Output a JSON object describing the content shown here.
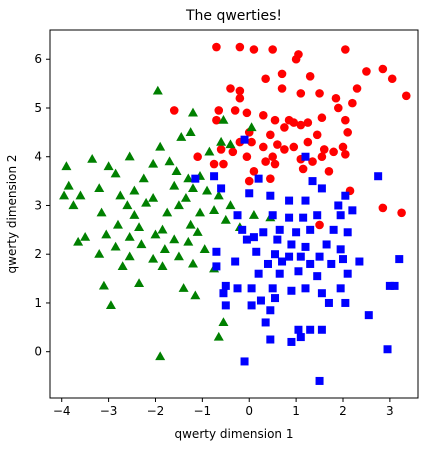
{
  "chart_data": {
    "type": "scatter",
    "title": "The qwerties!",
    "xlabel": "qwerty dimension 1",
    "ylabel": "qwerty dimension 2",
    "xlim": [
      -4.25,
      3.6
    ],
    "ylim": [
      -0.95,
      6.6
    ],
    "xticks": [
      -4,
      -3,
      -2,
      -1,
      0,
      1,
      2,
      3
    ],
    "yticks": [
      0,
      1,
      2,
      3,
      4,
      5,
      6
    ],
    "grid": false,
    "legend": "none",
    "series": [
      {
        "marker": "circle",
        "color": "#ff0000",
        "points": [
          [
            -0.7,
            6.25
          ],
          [
            -0.2,
            6.25
          ],
          [
            0.1,
            6.2
          ],
          [
            0.5,
            6.2
          ],
          [
            1.0,
            6.0
          ],
          [
            1.05,
            6.1
          ],
          [
            2.05,
            6.2
          ],
          [
            2.85,
            5.8
          ],
          [
            3.05,
            5.6
          ],
          [
            3.35,
            5.25
          ],
          [
            2.5,
            5.75
          ],
          [
            2.3,
            5.4
          ],
          [
            2.2,
            5.1
          ],
          [
            1.85,
            5.2
          ],
          [
            0.35,
            5.6
          ],
          [
            0.7,
            5.7
          ],
          [
            1.3,
            5.65
          ],
          [
            -0.4,
            5.4
          ],
          [
            -0.2,
            5.35
          ],
          [
            -0.2,
            5.2
          ],
          [
            0.7,
            5.4
          ],
          [
            1.1,
            5.3
          ],
          [
            1.5,
            5.3
          ],
          [
            1.9,
            5.0
          ],
          [
            -1.6,
            4.95
          ],
          [
            -0.65,
            4.95
          ],
          [
            -0.3,
            4.95
          ],
          [
            -0.05,
            4.9
          ],
          [
            0.3,
            4.85
          ],
          [
            0.85,
            4.75
          ],
          [
            1.25,
            4.7
          ],
          [
            1.55,
            4.8
          ],
          [
            2.05,
            4.75
          ],
          [
            -0.7,
            4.75
          ],
          [
            0.55,
            4.75
          ],
          [
            0.95,
            4.7
          ],
          [
            1.1,
            4.65
          ],
          [
            0.0,
            4.5
          ],
          [
            0.45,
            4.45
          ],
          [
            0.75,
            4.6
          ],
          [
            1.45,
            4.45
          ],
          [
            2.1,
            4.5
          ],
          [
            -0.2,
            4.3
          ],
          [
            0.05,
            4.3
          ],
          [
            0.3,
            4.2
          ],
          [
            0.6,
            4.25
          ],
          [
            0.95,
            4.2
          ],
          [
            1.25,
            4.3
          ],
          [
            1.6,
            4.15
          ],
          [
            2.0,
            4.2
          ],
          [
            -0.6,
            4.15
          ],
          [
            -0.35,
            4.1
          ],
          [
            -0.05,
            4.0
          ],
          [
            0.5,
            4.0
          ],
          [
            0.75,
            4.15
          ],
          [
            1.1,
            3.95
          ],
          [
            1.55,
            4.0
          ],
          [
            1.8,
            4.1
          ],
          [
            2.05,
            4.05
          ],
          [
            -1.1,
            4.0
          ],
          [
            -0.75,
            3.85
          ],
          [
            0.1,
            3.7
          ],
          [
            0.35,
            3.9
          ],
          [
            0.55,
            3.85
          ],
          [
            1.15,
            3.75
          ],
          [
            1.35,
            3.9
          ],
          [
            0.0,
            3.5
          ],
          [
            0.45,
            3.55
          ],
          [
            1.7,
            3.7
          ],
          [
            2.15,
            3.3
          ],
          [
            -0.55,
            3.85
          ],
          [
            1.5,
            2.6
          ],
          [
            2.85,
            2.95
          ],
          [
            3.25,
            2.85
          ]
        ]
      },
      {
        "marker": "triangle",
        "color": "#008000",
        "points": [
          [
            -1.95,
            5.35
          ],
          [
            -1.2,
            4.9
          ],
          [
            -0.55,
            4.75
          ],
          [
            0.05,
            4.6
          ],
          [
            -1.25,
            4.5
          ],
          [
            -1.45,
            4.4
          ],
          [
            -0.6,
            4.3
          ],
          [
            -0.4,
            4.25
          ],
          [
            -1.9,
            4.2
          ],
          [
            -0.85,
            4.1
          ],
          [
            -2.55,
            4.0
          ],
          [
            -3.35,
            3.95
          ],
          [
            -1.7,
            3.9
          ],
          [
            -2.05,
            3.85
          ],
          [
            -3.0,
            3.8
          ],
          [
            -3.9,
            3.8
          ],
          [
            -2.85,
            3.65
          ],
          [
            -1.55,
            3.7
          ],
          [
            -1.05,
            3.6
          ],
          [
            -1.3,
            3.55
          ],
          [
            -2.25,
            3.55
          ],
          [
            -3.85,
            3.4
          ],
          [
            -3.2,
            3.35
          ],
          [
            -2.45,
            3.3
          ],
          [
            -1.6,
            3.4
          ],
          [
            -1.2,
            3.35
          ],
          [
            -0.9,
            3.3
          ],
          [
            -3.95,
            3.2
          ],
          [
            -3.6,
            3.2
          ],
          [
            -2.75,
            3.2
          ],
          [
            -2.05,
            3.15
          ],
          [
            -1.35,
            3.15
          ],
          [
            -0.65,
            3.2
          ],
          [
            -3.75,
            3.0
          ],
          [
            -2.6,
            3.0
          ],
          [
            -2.2,
            3.05
          ],
          [
            -1.5,
            3.0
          ],
          [
            -0.4,
            3.0
          ],
          [
            -3.15,
            2.85
          ],
          [
            -2.45,
            2.8
          ],
          [
            -1.75,
            2.85
          ],
          [
            -1.05,
            2.85
          ],
          [
            -0.75,
            2.9
          ],
          [
            0.45,
            2.75
          ],
          [
            -2.8,
            2.6
          ],
          [
            -2.35,
            2.55
          ],
          [
            -1.85,
            2.5
          ],
          [
            -1.25,
            2.6
          ],
          [
            -0.5,
            2.7
          ],
          [
            0.1,
            2.8
          ],
          [
            -3.5,
            2.35
          ],
          [
            -3.05,
            2.4
          ],
          [
            -2.55,
            2.35
          ],
          [
            -2.0,
            2.4
          ],
          [
            -1.6,
            2.3
          ],
          [
            -1.1,
            2.45
          ],
          [
            -0.2,
            2.55
          ],
          [
            -3.65,
            2.25
          ],
          [
            -2.85,
            2.15
          ],
          [
            -2.3,
            2.2
          ],
          [
            -1.8,
            2.1
          ],
          [
            -1.3,
            2.25
          ],
          [
            -3.2,
            2.0
          ],
          [
            -2.55,
            1.95
          ],
          [
            -2.05,
            1.9
          ],
          [
            -1.5,
            1.95
          ],
          [
            -0.95,
            2.1
          ],
          [
            -2.7,
            1.75
          ],
          [
            -1.85,
            1.75
          ],
          [
            -1.2,
            1.8
          ],
          [
            -0.75,
            1.7
          ],
          [
            -3.1,
            1.35
          ],
          [
            -2.35,
            1.4
          ],
          [
            -1.4,
            1.3
          ],
          [
            -1.15,
            1.15
          ],
          [
            -2.95,
            0.95
          ],
          [
            -0.55,
            0.6
          ],
          [
            -0.65,
            0.3
          ],
          [
            -1.9,
            -0.1
          ]
        ]
      },
      {
        "marker": "square",
        "color": "#0000ff",
        "points": [
          [
            -1.15,
            3.55
          ],
          [
            -0.75,
            3.6
          ],
          [
            -0.1,
            4.35
          ],
          [
            1.2,
            4.0
          ],
          [
            0.2,
            3.55
          ],
          [
            1.35,
            3.5
          ],
          [
            -0.6,
            3.35
          ],
          [
            0.0,
            3.25
          ],
          [
            0.45,
            3.2
          ],
          [
            1.55,
            3.35
          ],
          [
            2.05,
            3.2
          ],
          [
            2.75,
            3.6
          ],
          [
            0.85,
            3.1
          ],
          [
            1.2,
            3.1
          ],
          [
            1.9,
            3.0
          ],
          [
            2.2,
            2.9
          ],
          [
            -0.25,
            2.8
          ],
          [
            0.5,
            2.8
          ],
          [
            0.85,
            2.75
          ],
          [
            1.15,
            2.75
          ],
          [
            1.45,
            2.8
          ],
          [
            1.95,
            2.8
          ],
          [
            -0.15,
            2.5
          ],
          [
            0.3,
            2.45
          ],
          [
            0.65,
            2.5
          ],
          [
            1.0,
            2.45
          ],
          [
            1.3,
            2.5
          ],
          [
            1.8,
            2.5
          ],
          [
            2.1,
            2.45
          ],
          [
            -0.05,
            2.3
          ],
          [
            0.1,
            2.35
          ],
          [
            0.6,
            2.3
          ],
          [
            0.9,
            2.2
          ],
          [
            1.2,
            2.15
          ],
          [
            1.65,
            2.2
          ],
          [
            1.95,
            2.1
          ],
          [
            -0.7,
            2.05
          ],
          [
            0.15,
            2.05
          ],
          [
            0.55,
            2.0
          ],
          [
            0.85,
            1.95
          ],
          [
            1.1,
            1.95
          ],
          [
            1.5,
            1.95
          ],
          [
            2.0,
            1.9
          ],
          [
            -0.3,
            1.85
          ],
          [
            0.4,
            1.8
          ],
          [
            0.7,
            1.85
          ],
          [
            1.3,
            1.8
          ],
          [
            1.75,
            1.8
          ],
          [
            2.35,
            1.85
          ],
          [
            3.2,
            1.9
          ],
          [
            -0.7,
            1.75
          ],
          [
            0.2,
            1.6
          ],
          [
            0.65,
            1.6
          ],
          [
            1.05,
            1.65
          ],
          [
            1.45,
            1.55
          ],
          [
            2.1,
            1.6
          ],
          [
            -0.5,
            1.35
          ],
          [
            -0.25,
            1.3
          ],
          [
            0.05,
            1.3
          ],
          [
            0.5,
            1.3
          ],
          [
            0.9,
            1.25
          ],
          [
            1.2,
            1.3
          ],
          [
            1.55,
            1.2
          ],
          [
            1.95,
            1.3
          ],
          [
            3.1,
            1.35
          ],
          [
            3.0,
            1.35
          ],
          [
            -0.55,
            1.2
          ],
          [
            0.25,
            1.05
          ],
          [
            0.55,
            1.1
          ],
          [
            1.7,
            1.0
          ],
          [
            2.05,
            1.0
          ],
          [
            -0.5,
            0.95
          ],
          [
            0.05,
            0.95
          ],
          [
            0.45,
            0.85
          ],
          [
            2.55,
            0.75
          ],
          [
            0.35,
            0.6
          ],
          [
            1.05,
            0.45
          ],
          [
            1.3,
            0.45
          ],
          [
            1.55,
            0.45
          ],
          [
            1.1,
            0.3
          ],
          [
            0.45,
            0.25
          ],
          [
            0.9,
            0.2
          ],
          [
            2.95,
            0.05
          ],
          [
            -0.1,
            -0.2
          ],
          [
            1.5,
            -0.6
          ]
        ]
      }
    ]
  }
}
